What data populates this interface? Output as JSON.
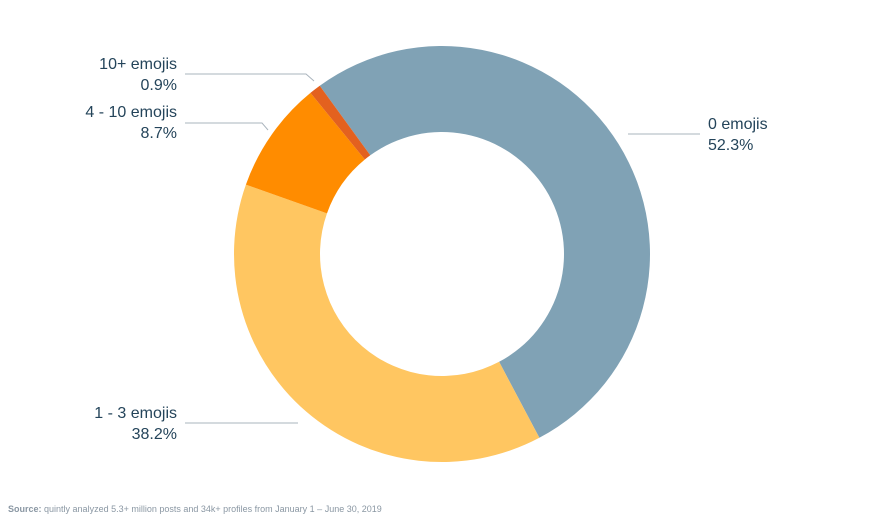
{
  "chart_data": {
    "type": "donut",
    "categories": [
      "0 emojis",
      "1 - 3 emojis",
      "4 - 10 emojis",
      "10+ emojis"
    ],
    "values": [
      52.3,
      38.2,
      8.7,
      0.9
    ],
    "value_labels": [
      "52.3%",
      "38.2%",
      "8.7%",
      "0.9%"
    ],
    "colors": [
      "#80a2b5",
      "#ffc661",
      "#ff8c00",
      "#e3611f"
    ],
    "source_label": "Source:",
    "source_text": "quintly analyzed 5.3+ million posts and 34k+ profiles from January 1 – June 30, 2019"
  }
}
